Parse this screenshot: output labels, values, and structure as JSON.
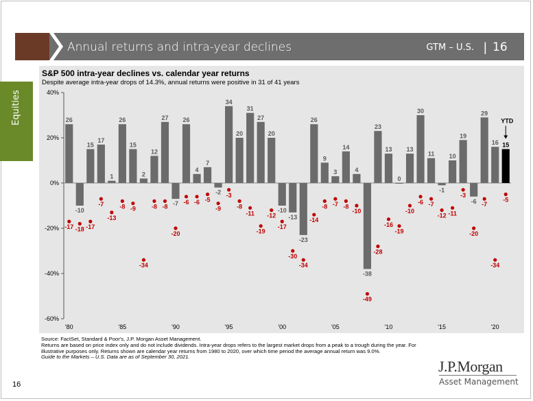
{
  "header": {
    "title": "Annual returns and intra-year declines",
    "gtm": "GTM – U.S.",
    "separator": "|",
    "page": "16"
  },
  "side_tab": {
    "label": "Equities"
  },
  "chart_data": {
    "type": "bar",
    "title": "S&P 500 intra-year declines vs. calendar year returns",
    "subtitle": "Despite average intra-year drops of 14.3%, annual returns were positive in 31 of 41 years",
    "years": [
      1980,
      1981,
      1982,
      1983,
      1984,
      1985,
      1986,
      1987,
      1988,
      1989,
      1990,
      1991,
      1992,
      1993,
      1994,
      1995,
      1996,
      1997,
      1998,
      1999,
      2000,
      2001,
      2002,
      2003,
      2004,
      2005,
      2006,
      2007,
      2008,
      2009,
      2010,
      2011,
      2012,
      2013,
      2014,
      2015,
      2016,
      2017,
      2018,
      2019,
      2020,
      2021
    ],
    "x_tick_labels": [
      "'80",
      "'85",
      "'90",
      "'95",
      "'00",
      "'05",
      "'10",
      "'15",
      "'20"
    ],
    "x_tick_years": [
      1980,
      1985,
      1990,
      1995,
      2000,
      2005,
      2010,
      2015,
      2020
    ],
    "series": [
      {
        "values": [
          26,
          -10,
          15,
          17,
          1,
          26,
          15,
          2,
          12,
          27,
          -7,
          26,
          4,
          7,
          -2,
          34,
          20,
          31,
          27,
          20,
          -10,
          -13,
          -23,
          26,
          9,
          3,
          14,
          4,
          -38,
          23,
          13,
          0,
          13,
          30,
          11,
          -1,
          10,
          19,
          -6,
          29,
          16,
          15
        ]
      },
      {
        "values": [
          -17,
          -18,
          -17,
          -7,
          -13,
          -8,
          -9,
          -34,
          -8,
          -8,
          -20,
          -6,
          -6,
          -5,
          -9,
          -3,
          -8,
          -11,
          -19,
          -12,
          -17,
          -30,
          -34,
          -14,
          -8,
          -7,
          -8,
          -10,
          -49,
          -28,
          -16,
          -19,
          -10,
          -6,
          -7,
          -12,
          -11,
          -3,
          -20,
          -7,
          -34,
          -5
        ]
      }
    ],
    "highlight_label": "YTD",
    "highlight_year": 2021,
    "y_ticks": [
      40,
      20,
      0,
      -20,
      -40,
      -60
    ],
    "y_tick_labels": [
      "40%",
      "20%",
      "0%",
      "-20%",
      "-40%",
      "-60%"
    ],
    "ylim": [
      -60,
      40
    ],
    "colors": {
      "bar": "#6b6b6b",
      "bar_highlight": "#000000",
      "decline": "#c00000",
      "axis": "#555555"
    }
  },
  "source": {
    "line1": "Source: FactSet, Standard & Poor's, J.P. Morgan Asset Management.",
    "line2": "Returns are based on price index only and do not include dividends. Intra-year drops refers to the largest market drops from a peak to a trough during the year. For illustrative purposes only. Returns shown are calendar year returns from 1980 to 2020, over which time period the average annual return was 9.0%.",
    "line3": "Guide to the Markets – U.S. Data are as of September 30, 2021."
  },
  "footer": {
    "page_number": "16",
    "logo_main": "J.P.Morgan",
    "logo_sub": "Asset Management"
  }
}
